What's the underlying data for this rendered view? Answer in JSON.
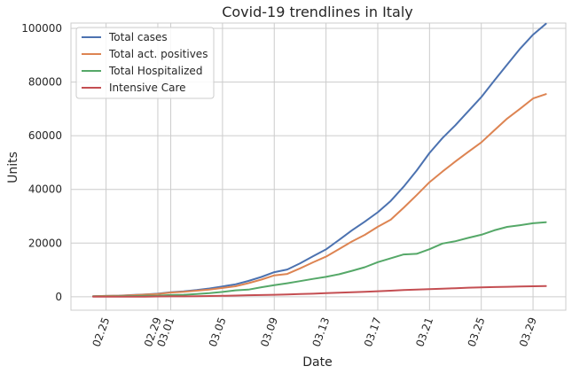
{
  "chart_data": {
    "type": "line",
    "title": "Covid-19 trendlines in Italy",
    "xlabel": "Date",
    "ylabel": "Units",
    "ylim": [
      -5000,
      102000
    ],
    "yticks": [
      0,
      20000,
      40000,
      60000,
      80000,
      100000
    ],
    "xticks": [
      "02.25",
      "02.29",
      "03.01",
      "03.05",
      "03.09",
      "03.13",
      "03.17",
      "03.21",
      "03.25",
      "03.29"
    ],
    "x": [
      "02.24",
      "02.25",
      "02.26",
      "02.27",
      "02.28",
      "02.29",
      "03.01",
      "03.02",
      "03.03",
      "03.04",
      "03.05",
      "03.06",
      "03.07",
      "03.08",
      "03.09",
      "03.10",
      "03.11",
      "03.12",
      "03.13",
      "03.14",
      "03.15",
      "03.16",
      "03.17",
      "03.18",
      "03.19",
      "03.20",
      "03.21",
      "03.22",
      "03.23",
      "03.24",
      "03.25",
      "03.26",
      "03.27",
      "03.28",
      "03.29",
      "03.30"
    ],
    "grid": true,
    "legend_position": "top-left",
    "series": [
      {
        "name": "Total cases",
        "color": "#4c72b0",
        "values": [
          229,
          322,
          400,
          650,
          888,
          1128,
          1694,
          2036,
          2502,
          3089,
          3858,
          4636,
          5883,
          7375,
          9172,
          10149,
          12462,
          15113,
          17660,
          21157,
          24747,
          27980,
          31506,
          35713,
          41035,
          47021,
          53578,
          59138,
          63927,
          69176,
          74386,
          80539,
          86498,
          92472,
          97689,
          101739
        ]
      },
      {
        "name": "Total act. positives",
        "color": "#dd8452",
        "values": [
          221,
          311,
          385,
          588,
          821,
          1049,
          1577,
          1835,
          2263,
          2706,
          3296,
          3916,
          5061,
          6387,
          7985,
          8514,
          10590,
          12839,
          14955,
          17750,
          20603,
          23073,
          26062,
          28710,
          33190,
          37860,
          42681,
          46638,
          50418,
          54030,
          57521,
          62013,
          66414,
          70065,
          73880,
          75528
        ]
      },
      {
        "name": "Total Hospitalized",
        "color": "#55a868",
        "values": [
          127,
          150,
          200,
          260,
          345,
          401,
          639,
          742,
          1034,
          1346,
          1790,
          2394,
          2651,
          3557,
          4316,
          5038,
          5838,
          6650,
          7426,
          8372,
          9663,
          11025,
          12894,
          14363,
          15757,
          16020,
          17708,
          19846,
          20692,
          21937,
          23112,
          24753,
          26029,
          26676,
          27386,
          27795
        ]
      },
      {
        "name": "Intensive Care",
        "color": "#c44e52",
        "values": [
          26,
          35,
          36,
          56,
          64,
          105,
          140,
          166,
          229,
          295,
          351,
          462,
          567,
          650,
          733,
          877,
          1028,
          1153,
          1328,
          1518,
          1672,
          1851,
          2060,
          2257,
          2498,
          2655,
          2857,
          3009,
          3204,
          3396,
          3489,
          3612,
          3732,
          3856,
          3906,
          3981
        ]
      }
    ]
  }
}
